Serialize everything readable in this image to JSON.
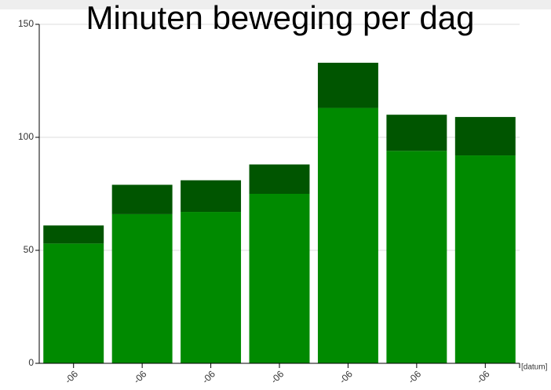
{
  "chart_data": {
    "type": "bar",
    "stacked": true,
    "title": "Minuten beweging per dag",
    "x_label": "[datum]",
    "categories": [
      "-06",
      "-06",
      "-06",
      "-06",
      "-06",
      "-06",
      "-06"
    ],
    "series": [
      {
        "color": "#008a00",
        "values": [
          53,
          66,
          67,
          75,
          113,
          94,
          92
        ]
      },
      {
        "color": "#005500",
        "values": [
          8,
          13,
          14,
          13,
          20,
          16,
          17
        ]
      }
    ],
    "ylim": [
      0,
      150
    ],
    "yticks": [
      0,
      50,
      100,
      150
    ],
    "grid": true
  }
}
